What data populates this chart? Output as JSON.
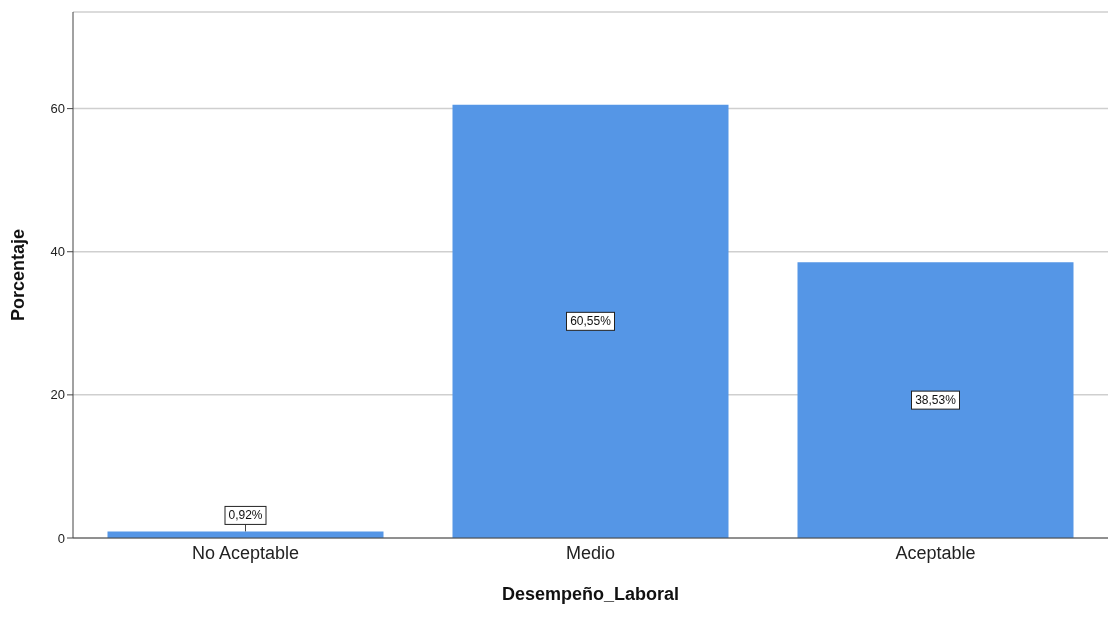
{
  "chart_data": {
    "type": "bar",
    "xlabel": "Desempeño_Laboral",
    "ylabel": "Porcentaje",
    "categories": [
      "No Aceptable",
      "Medio",
      "Aceptable"
    ],
    "values": [
      0.92,
      60.55,
      38.53
    ],
    "value_labels": [
      "0,92%",
      "60,55%",
      "38,53%"
    ],
    "color": "#5596e6",
    "ylim": [
      0,
      73.5
    ],
    "yticks": [
      0,
      20,
      40,
      60
    ],
    "grid": "y"
  }
}
